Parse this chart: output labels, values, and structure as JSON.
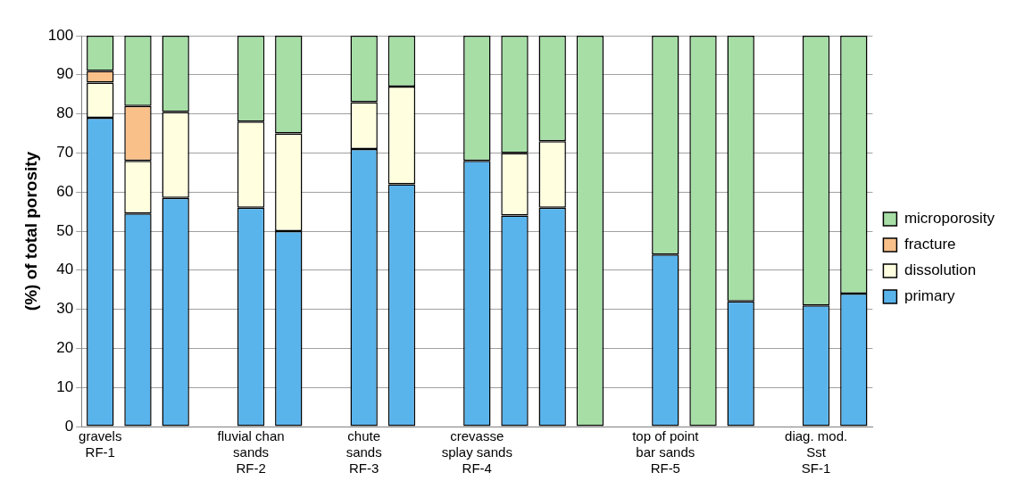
{
  "chart_data": {
    "type": "bar",
    "stacked": true,
    "ylabel": "(%) of total porosity",
    "categories": [
      "gravels\nRF-1",
      null,
      null,
      null,
      "fluvial chan\nsands\nRF-2",
      null,
      null,
      "chute\nsands\nRF-3",
      null,
      null,
      "crevasse\nsplay sands\nRF-4",
      null,
      null,
      null,
      null,
      "top of point\nbar sands\nRF-5",
      null,
      null,
      null,
      "diag. mod.\nSst\nSF-1",
      null
    ],
    "series": [
      {
        "name": "primary",
        "color": "#5ab4ec",
        "values": [
          79,
          54.5,
          58.5,
          null,
          56,
          50,
          null,
          71,
          62,
          null,
          68,
          54,
          56,
          null,
          null,
          44,
          null,
          32,
          null,
          31,
          34
        ]
      },
      {
        "name": "dissolution",
        "color": "#ffffe0",
        "values": [
          9,
          13.5,
          22,
          null,
          22,
          25,
          null,
          12,
          25,
          null,
          null,
          16,
          17,
          null,
          null,
          null,
          null,
          null,
          null,
          null,
          null
        ]
      },
      {
        "name": "fracture",
        "color": "#f9c08a",
        "values": [
          3,
          14,
          null,
          null,
          null,
          null,
          null,
          null,
          null,
          null,
          null,
          null,
          null,
          null,
          null,
          null,
          null,
          null,
          null,
          null,
          null
        ]
      },
      {
        "name": "microporosity",
        "color": "#a6dea6",
        "values": [
          9,
          18,
          19.5,
          null,
          22,
          25,
          null,
          17,
          13,
          null,
          32,
          30,
          27,
          100,
          null,
          56,
          100,
          68,
          null,
          69,
          66
        ]
      }
    ],
    "ylim": [
      0,
      100
    ],
    "yticks": [
      0,
      10,
      20,
      30,
      40,
      50,
      60,
      70,
      80,
      90,
      100
    ],
    "grid": "y",
    "legend": "right"
  }
}
